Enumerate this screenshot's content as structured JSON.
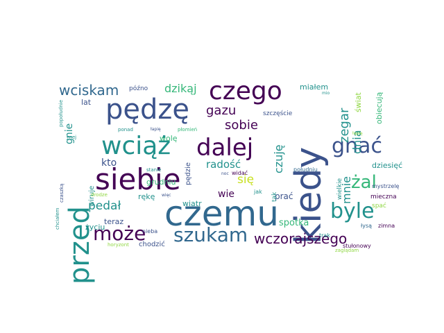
{
  "colors": {
    "purple": "#440154",
    "indigo": "#3b528b",
    "blue": "#31688e",
    "teal": "#21918c",
    "green": "#35b779",
    "lime": "#90d743",
    "yellow": "#c8e020"
  },
  "words": [
    {
      "text": "czemu",
      "color": "blue"
    },
    {
      "text": "kiedy",
      "color": "indigo"
    },
    {
      "text": "siebie",
      "color": "purple"
    },
    {
      "text": "przed",
      "color": "teal"
    },
    {
      "text": "pędzę",
      "color": "indigo"
    },
    {
      "text": "czego",
      "color": "purple"
    },
    {
      "text": "wciąż",
      "color": "teal"
    },
    {
      "text": "dalej",
      "color": "purple"
    },
    {
      "text": "gnać",
      "color": "indigo"
    },
    {
      "text": "szukam",
      "color": "blue"
    },
    {
      "text": "byle",
      "color": "teal"
    },
    {
      "text": "żal",
      "color": "green"
    },
    {
      "text": "może",
      "color": "purple"
    },
    {
      "text": "wczorajszego",
      "color": "purple"
    },
    {
      "text": "wciskam",
      "color": "blue"
    },
    {
      "text": "sobie",
      "color": "purple"
    },
    {
      "text": "gazu",
      "color": "purple"
    },
    {
      "text": "zegar",
      "color": "teal"
    },
    {
      "text": "dzikąj",
      "color": "green"
    },
    {
      "text": "dnia",
      "color": "teal"
    },
    {
      "text": "czuję",
      "color": "teal"
    },
    {
      "text": "pedał",
      "color": "teal"
    },
    {
      "text": "radość",
      "color": "teal"
    },
    {
      "text": "się",
      "color": "yellow"
    },
    {
      "text": "mnie",
      "color": "teal"
    },
    {
      "text": "kto",
      "color": "indigo"
    },
    {
      "text": "gnie",
      "color": "teal"
    },
    {
      "text": "wie",
      "color": "purple"
    },
    {
      "text": "spotka",
      "color": "green"
    },
    {
      "text": "miałem",
      "color": "teal"
    },
    {
      "text": "lat",
      "color": "indigo"
    },
    {
      "text": "teraz",
      "color": "indigo"
    },
    {
      "text": "życiu",
      "color": "teal"
    },
    {
      "text": "rękę",
      "color": "teal"
    },
    {
      "text": "wiatr",
      "color": "teal"
    },
    {
      "text": "prać",
      "color": "indigo"
    },
    {
      "text": "dziesięć",
      "color": "teal"
    },
    {
      "text": "obiecują",
      "color": "green"
    },
    {
      "text": "świat",
      "color": "lime"
    },
    {
      "text": "szczęście",
      "color": "indigo"
    },
    {
      "text": "wolę",
      "color": "green"
    },
    {
      "text": "grudniu",
      "color": "green"
    },
    {
      "text": "chodzić",
      "color": "indigo"
    },
    {
      "text": "późno",
      "color": "indigo"
    },
    {
      "text": "wiruje",
      "color": "teal"
    },
    {
      "text": "pędzie",
      "color": "indigo"
    },
    {
      "text": "wielkie",
      "color": "teal"
    },
    {
      "text": "tak",
      "color": "teal"
    },
    {
      "text": "mieczna",
      "color": "purple"
    },
    {
      "text": "spać",
      "color": "lime"
    },
    {
      "text": "mystrzelę",
      "color": "indigo"
    },
    {
      "text": "stułonowy",
      "color": "purple"
    },
    {
      "text": "zimna",
      "color": "purple"
    },
    {
      "text": "łysą",
      "color": "blue"
    },
    {
      "text": "trak",
      "color": "teal"
    },
    {
      "text": "nieba",
      "color": "indigo"
    },
    {
      "text": "horyzont",
      "color": "lime"
    },
    {
      "text": "zaglądam",
      "color": "lime"
    },
    {
      "text": "jak",
      "color": "teal"
    },
    {
      "text": "widać",
      "color": "purple"
    },
    {
      "text": "południu",
      "color": "blue"
    },
    {
      "text": "stanie",
      "color": "teal"
    },
    {
      "text": "ponad",
      "color": "teal"
    },
    {
      "text": "łapię",
      "color": "indigo"
    },
    {
      "text": "płomień",
      "color": "green"
    },
    {
      "text": "więc",
      "color": "indigo"
    },
    {
      "text": "czaszką",
      "color": "indigo"
    },
    {
      "text": "chciałem",
      "color": "teal"
    },
    {
      "text": "drodze",
      "color": "lime"
    },
    {
      "text": "mej",
      "color": "teal"
    },
    {
      "text": "popołudnie",
      "color": "teal"
    },
    {
      "text": "łapię",
      "color": "lime"
    },
    {
      "text": "mio",
      "color": "teal"
    },
    {
      "text": "noc",
      "color": "indigo"
    }
  ]
}
